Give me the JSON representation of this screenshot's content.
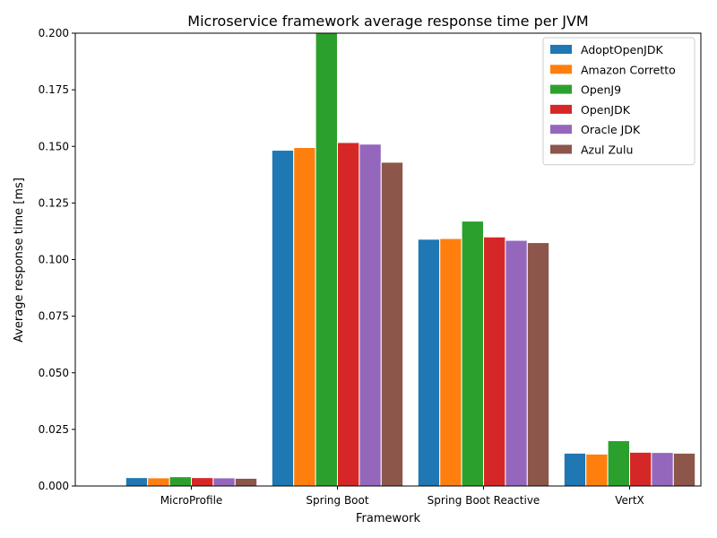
{
  "chart_data": {
    "type": "bar",
    "title": "Microservice framework average response time per JVM",
    "xlabel": "Framework",
    "ylabel": "Average response time [ms]",
    "ylim": [
      0,
      0.2
    ],
    "yticks": [
      "0.000",
      "0.025",
      "0.050",
      "0.075",
      "0.100",
      "0.125",
      "0.150",
      "0.175",
      "0.200"
    ],
    "grid": false,
    "legend_position": "top-right",
    "categories": [
      "MicroProfile",
      "Spring Boot",
      "Spring Boot Reactive",
      "VertX"
    ],
    "series": [
      {
        "name": "AdoptOpenJDK",
        "color": "#1f77b4",
        "values": [
          0.0037,
          0.1483,
          0.109,
          0.0145
        ]
      },
      {
        "name": "Amazon Corretto",
        "color": "#ff7f0e",
        "values": [
          0.0036,
          0.1495,
          0.1093,
          0.0141
        ]
      },
      {
        "name": "OpenJ9",
        "color": "#2ca02c",
        "values": [
          0.0041,
          0.2017,
          0.117,
          0.02
        ]
      },
      {
        "name": "OpenJDK",
        "color": "#d62728",
        "values": [
          0.0037,
          0.1517,
          0.11,
          0.0149
        ]
      },
      {
        "name": "Oracle JDK",
        "color": "#9467bd",
        "values": [
          0.0036,
          0.151,
          0.1085,
          0.0148
        ]
      },
      {
        "name": "Azul Zulu",
        "color": "#8c564b",
        "values": [
          0.0034,
          0.143,
          0.1075,
          0.0145
        ]
      }
    ]
  }
}
